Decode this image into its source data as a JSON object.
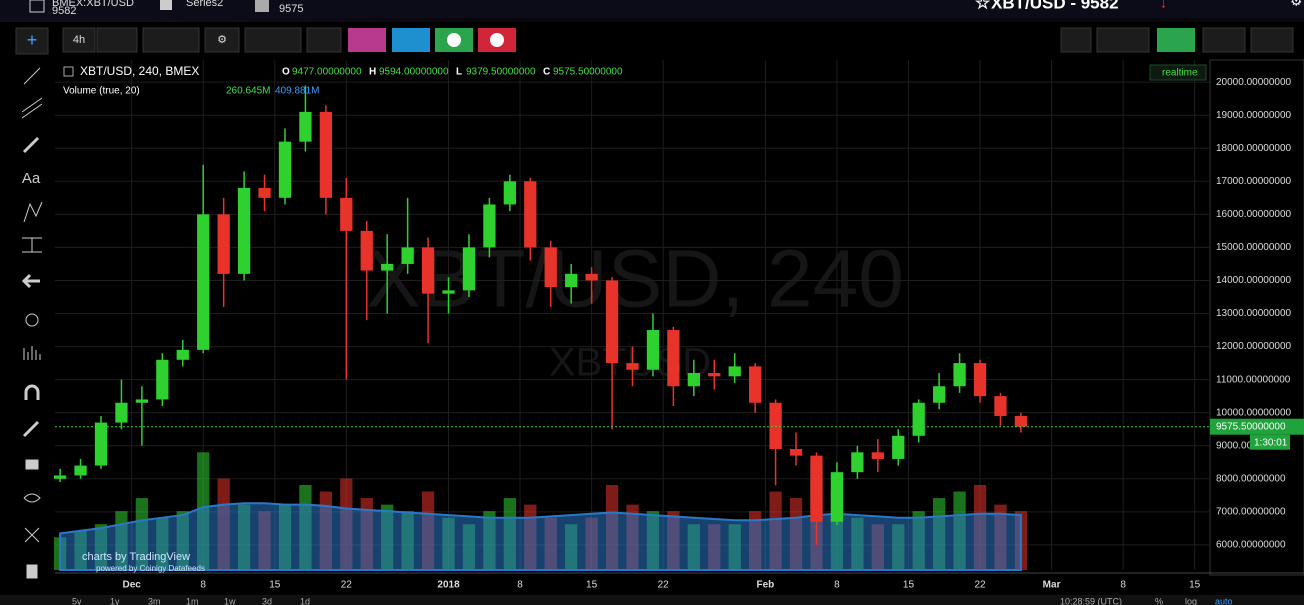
{
  "tabs": [
    {
      "label": "BMEX:XBT/USD",
      "sub": "9582"
    },
    {
      "label": "Series2"
    },
    {
      "sub": "9575"
    }
  ],
  "header_title": "XBT/USD - 9582",
  "toolbar": {
    "interval": "4h"
  },
  "left_tools": {
    "text_tool": "Aa"
  },
  "chart_data": {
    "type": "candlestick",
    "symbol": "XBT/USD, 240, BMEX",
    "ohlc_legend": [
      {
        "label": "O",
        "value": "9477.00000000"
      },
      {
        "label": "H",
        "value": "9594.00000000"
      },
      {
        "label": "L",
        "value": "9379.50000000"
      },
      {
        "label": "C",
        "value": "9575.50000000"
      }
    ],
    "volume_legend": {
      "label": "Volume (true, 20)",
      "volume": "260.645M",
      "ma": "409.881M"
    },
    "realtime": "realtime",
    "watermark": "XBT/USD, 240",
    "watermark_sub": "XBTUSD",
    "up_color": "#2fd12f",
    "down_color": "#e8332b",
    "x": [
      -7,
      -5,
      -3,
      -1,
      1,
      3,
      5,
      7,
      9,
      11,
      13,
      15,
      17,
      19,
      21,
      23,
      25,
      27,
      29,
      31,
      33,
      35,
      37,
      39,
      41,
      43,
      45,
      47,
      49,
      51,
      53,
      55,
      57,
      59,
      61,
      63,
      65,
      67,
      69,
      71,
      73,
      75,
      77,
      79,
      81,
      83,
      85,
      87
    ],
    "open": [
      8000,
      8100,
      8400,
      9700,
      10300,
      10400,
      11600,
      11900,
      16000,
      14200,
      16800,
      16500,
      18200,
      19100,
      16500,
      15500,
      14300,
      14500,
      15000,
      13600,
      13700,
      15000,
      16300,
      17000,
      15000,
      13800,
      14200,
      14000,
      11500,
      11300,
      12500,
      10800,
      11200,
      11100,
      11400,
      10300,
      8900,
      8700,
      6700,
      8200,
      8800,
      8600,
      9300,
      10300,
      10800,
      11500,
      10500,
      9900
    ],
    "high": [
      8300,
      8600,
      9900,
      11000,
      10800,
      11800,
      12200,
      17500,
      16500,
      17300,
      17200,
      18600,
      19900,
      19300,
      17100,
      15800,
      15400,
      16500,
      15300,
      14100,
      15400,
      16500,
      17200,
      17100,
      15200,
      14500,
      14400,
      14100,
      12000,
      13000,
      12600,
      11600,
      11600,
      11800,
      11500,
      10400,
      9400,
      8800,
      8500,
      9000,
      9200,
      9500,
      10400,
      11200,
      11800,
      11600,
      10600,
      10000
    ],
    "low": [
      7900,
      8000,
      8300,
      9500,
      9000,
      10200,
      11400,
      11800,
      13200,
      14000,
      16100,
      16300,
      17900,
      16000,
      11000,
      12800,
      13000,
      14200,
      12100,
      13000,
      13500,
      14700,
      16100,
      14600,
      13200,
      13300,
      13300,
      9500,
      10800,
      11100,
      10200,
      10500,
      10700,
      10900,
      10000,
      7800,
      8400,
      6000,
      6600,
      8000,
      8200,
      8400,
      9100,
      10100,
      10600,
      10300,
      9600,
      9400
    ],
    "close": [
      8100,
      8400,
      9700,
      10300,
      10400,
      11600,
      11900,
      16000,
      14200,
      16800,
      16500,
      18200,
      19100,
      16500,
      15500,
      14300,
      14500,
      15000,
      13600,
      13700,
      15000,
      16300,
      17000,
      15000,
      13800,
      14200,
      14000,
      11500,
      11300,
      12500,
      10800,
      11200,
      11100,
      11400,
      10300,
      8900,
      8700,
      6700,
      8200,
      8800,
      8600,
      9300,
      10300,
      10800,
      11500,
      10500,
      9900,
      9575
    ],
    "volume": {
      "values": [
        250,
        300,
        350,
        450,
        550,
        400,
        450,
        900,
        700,
        500,
        450,
        500,
        650,
        600,
        700,
        550,
        500,
        450,
        600,
        400,
        350,
        450,
        550,
        500,
        400,
        350,
        400,
        650,
        500,
        450,
        450,
        350,
        350,
        350,
        450,
        600,
        550,
        800,
        600,
        400,
        350,
        350,
        450,
        550,
        600,
        650,
        500,
        450
      ],
      "ylim": [
        0,
        1300
      ]
    },
    "volume_ma": {
      "values": [
        280,
        300,
        320,
        350,
        380,
        400,
        420,
        480,
        500,
        510,
        510,
        500,
        500,
        490,
        470,
        460,
        450,
        440,
        430,
        420,
        410,
        400,
        400,
        400,
        410,
        420,
        430,
        440,
        430,
        420,
        410,
        400,
        390,
        380,
        380,
        390,
        400,
        420,
        430,
        420,
        410,
        400,
        400,
        410,
        420,
        430,
        430,
        420
      ],
      "color": "#2a78c8"
    },
    "xlim": [
      -7.5,
      105.5
    ],
    "xticks": [
      {
        "value": 0,
        "label": "Dec"
      },
      {
        "value": 7,
        "label": "8"
      },
      {
        "value": 14,
        "label": "15"
      },
      {
        "value": 21,
        "label": "22"
      },
      {
        "value": 31,
        "label": "2018"
      },
      {
        "value": 38,
        "label": "8"
      },
      {
        "value": 45,
        "label": "15"
      },
      {
        "value": 52,
        "label": "22"
      },
      {
        "value": 62,
        "label": "Feb"
      },
      {
        "value": 69,
        "label": "8"
      },
      {
        "value": 76,
        "label": "15"
      },
      {
        "value": 83,
        "label": "22"
      },
      {
        "value": 90,
        "label": "Mar"
      },
      {
        "value": 97,
        "label": "8"
      },
      {
        "value": 104,
        "label": "15"
      }
    ],
    "ylim": [
      5240,
      20670
    ],
    "yticks": [
      {
        "value": 6000,
        "label": "6000.00000000"
      },
      {
        "value": 7000,
        "label": "7000.00000000"
      },
      {
        "value": 8000,
        "label": "8000.00000000"
      },
      {
        "value": 9000,
        "label": "9000.00000000"
      },
      {
        "value": 10000,
        "label": "10000.00000000"
      },
      {
        "value": 11000,
        "label": "11000.00000000"
      },
      {
        "value": 12000,
        "label": "12000.00000000"
      },
      {
        "value": 13000,
        "label": "13000.00000000"
      },
      {
        "value": 14000,
        "label": "14000.00000000"
      },
      {
        "value": 15000,
        "label": "15000.00000000"
      },
      {
        "value": 16000,
        "label": "16000.00000000"
      },
      {
        "value": 17000,
        "label": "17000.00000000"
      },
      {
        "value": 18000,
        "label": "18000.00000000"
      },
      {
        "value": 19000,
        "label": "19000.00000000"
      },
      {
        "value": 20000,
        "label": "20000.00000000"
      }
    ],
    "grid": true,
    "last_price": {
      "value": 9575.5,
      "label": "9575.50000000"
    },
    "countdown": "1:30:01"
  },
  "branding": {
    "main": "charts by TradingView",
    "sub": "powered by Coinigy Datafeeds"
  },
  "bottom_bar": {
    "ranges": [
      "5y",
      "1y",
      "3m",
      "1m",
      "1w",
      "3d",
      "1d"
    ],
    "clock": "10:28:59 (UTC)",
    "options": [
      "%",
      "log",
      "auto"
    ]
  }
}
